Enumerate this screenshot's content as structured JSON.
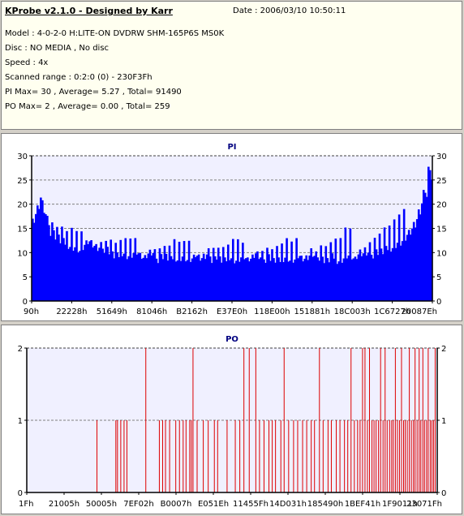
{
  "header": {
    "title": "KProbe v2.1.0 - Designed by Karr",
    "date": "Date : 2006/03/10 10:50:11",
    "model": "Model : 4-0-2-0 H:LITE-ON DVDRW SHM-165P6S MS0K",
    "disc": "Disc : NO MEDIA , No disc",
    "speed": "Speed : 4x",
    "range": "Scanned range : 0:2:0 (0) - 230F3Fh",
    "pi": "PI Max= 30 , Average= 5.27 , Total= 91490",
    "po": "PO Max= 2 , Average= 0.00 , Total= 259"
  },
  "colors": {
    "pi_fill": "#0000ff",
    "po_line": "#dd0000",
    "plot_bg": "#f0f0ff",
    "title_color": "#000080"
  },
  "chart_data": [
    {
      "type": "bar",
      "title": "PI",
      "ylim": [
        0,
        30
      ],
      "yticks": [
        0,
        5,
        10,
        15,
        20,
        25,
        30
      ],
      "ygrid": [
        5,
        10,
        15,
        20,
        25
      ],
      "grid": "dashed horizontal",
      "xlabels": [
        "90h",
        "22228h",
        "51649h",
        "81046h",
        "B2162h",
        "E37E0h",
        "118E00h",
        "151881h",
        "18C003h",
        "1C6727h",
        "20087Eh"
      ],
      "xlim": [
        "90h",
        "230F3Fh"
      ],
      "series": [
        {
          "values": [
            17,
            19,
            22,
            18,
            16,
            15,
            14,
            13,
            13,
            12,
            12,
            11,
            12,
            13,
            12,
            11,
            11,
            12,
            11,
            10,
            10,
            11,
            10,
            10,
            11,
            10,
            9,
            10,
            10,
            9,
            10,
            10,
            9,
            10,
            9,
            10,
            9,
            9,
            10,
            9,
            9,
            10,
            9,
            10,
            9,
            9,
            10,
            9,
            9,
            10,
            9,
            9,
            10,
            9,
            9,
            10,
            9,
            9,
            9,
            10,
            9,
            9,
            10,
            9,
            9,
            10,
            9,
            10,
            9,
            9,
            10,
            9,
            9,
            10,
            10,
            9,
            10,
            10,
            10,
            10,
            11,
            11,
            11,
            12,
            12,
            13,
            13,
            14,
            15,
            16,
            18,
            21,
            26,
            29
          ],
          "peaks": [
            22,
            23,
            21,
            19,
            18,
            17,
            16,
            17,
            15,
            16,
            15,
            14,
            15,
            16,
            14,
            14,
            15,
            13,
            15,
            13,
            14,
            13,
            14,
            13,
            13,
            15,
            12,
            13,
            13,
            14,
            12,
            13,
            13,
            14,
            13,
            13,
            12,
            13,
            14,
            12,
            13,
            13,
            14,
            12,
            13,
            12,
            13,
            14,
            13,
            12,
            14,
            13,
            12,
            14,
            13,
            13,
            12,
            13,
            13,
            14,
            13,
            12,
            14,
            14,
            13,
            15,
            13,
            14,
            14,
            13,
            15,
            14,
            14,
            16,
            15,
            14,
            17,
            15,
            16,
            18,
            16,
            17,
            18,
            17,
            18,
            18,
            19,
            19,
            20,
            21,
            23,
            26,
            29,
            30
          ]
        }
      ]
    },
    {
      "type": "bar",
      "title": "PO",
      "ylim": [
        0,
        2
      ],
      "yticks": [
        0,
        1,
        2
      ],
      "ygrid": [
        1
      ],
      "grid": "dashed horizontal",
      "xlabels": [
        "1Fh",
        "21005h",
        "50005h",
        "7EF02h",
        "B0007h",
        "E051Eh",
        "11455Fh",
        "14D031h",
        "185490h",
        "1BEF41h",
        "1F9011h",
        "23071Fh"
      ],
      "xlim": [
        "1Fh",
        "230F3Fh"
      ],
      "series": [
        {
          "x_fraction": [
            0.171,
            0.217,
            0.221,
            0.229,
            0.237,
            0.244,
            0.29,
            0.323,
            0.331,
            0.338,
            0.348,
            0.363,
            0.372,
            0.381,
            0.388,
            0.397,
            0.401,
            0.405,
            0.415,
            0.43,
            0.442,
            0.457,
            0.465,
            0.488,
            0.508,
            0.519,
            0.529,
            0.542,
            0.558,
            0.567,
            0.578,
            0.59,
            0.598,
            0.606,
            0.619,
            0.627,
            0.638,
            0.65,
            0.66,
            0.672,
            0.682,
            0.693,
            0.701,
            0.713,
            0.722,
            0.734,
            0.742,
            0.754,
            0.763,
            0.774,
            0.782,
            0.79,
            0.798,
            0.806,
            0.812,
            0.818,
            0.824,
            0.83,
            0.835,
            0.841,
            0.846,
            0.851,
            0.857,
            0.862,
            0.868,
            0.873,
            0.878,
            0.884,
            0.889,
            0.893,
            0.898,
            0.903,
            0.908,
            0.913,
            0.918,
            0.922,
            0.927,
            0.932,
            0.937,
            0.942,
            0.946,
            0.951,
            0.956,
            0.96,
            0.965,
            0.969,
            0.974,
            0.978,
            0.983,
            0.987,
            0.991,
            0.995
          ],
          "values": [
            1,
            1,
            1,
            1,
            1,
            1,
            2,
            1,
            1,
            1,
            1,
            1,
            1,
            1,
            1,
            1,
            1,
            2,
            1,
            1,
            1,
            1,
            1,
            1,
            1,
            1,
            2,
            2,
            2,
            1,
            1,
            1,
            1,
            1,
            1,
            2,
            1,
            1,
            1,
            1,
            1,
            1,
            1,
            2,
            1,
            1,
            1,
            1,
            1,
            1,
            1,
            2,
            1,
            1,
            1,
            2,
            2,
            1,
            2,
            1,
            1,
            1,
            1,
            2,
            1,
            2,
            1,
            1,
            1,
            1,
            2,
            1,
            1,
            2,
            1,
            1,
            1,
            2,
            1,
            1,
            2,
            1,
            2,
            1,
            2,
            1,
            1,
            2,
            1,
            1,
            1,
            2
          ]
        }
      ]
    }
  ]
}
